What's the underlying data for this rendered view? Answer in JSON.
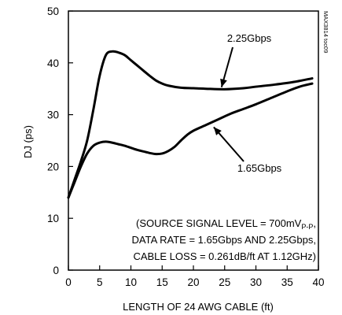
{
  "chart_data": {
    "type": "line",
    "title": "",
    "figure_id": "MAX3814 toc09",
    "xlabel": "LENGTH OF 24 AWG CABLE (ft)",
    "ylabel": "DJ (ps)",
    "xlim": [
      0,
      40
    ],
    "ylim": [
      0,
      50
    ],
    "x_ticks": [
      0,
      5,
      10,
      15,
      20,
      25,
      30,
      35,
      40
    ],
    "y_ticks": [
      0,
      10,
      20,
      30,
      40,
      50
    ],
    "grid": false,
    "series": [
      {
        "name": "2.25Gbps",
        "x": [
          0,
          1,
          2,
          3,
          4,
          5,
          6,
          7,
          8,
          9,
          10,
          11,
          12,
          13,
          14,
          15,
          16,
          18,
          20,
          22,
          25,
          28,
          30,
          33,
          36,
          39
        ],
        "y": [
          14,
          17.5,
          21,
          25,
          31,
          37.5,
          41.5,
          42.2,
          42,
          41.5,
          40.5,
          39.5,
          38.5,
          37.5,
          36.6,
          36,
          35.6,
          35.2,
          35.1,
          35,
          34.9,
          35.1,
          35.4,
          35.8,
          36.3,
          37
        ]
      },
      {
        "name": "1.65Gbps",
        "x": [
          0,
          1,
          2,
          3,
          4,
          5,
          6,
          7,
          8,
          9,
          10,
          11,
          12,
          13,
          14,
          15,
          16,
          17,
          18,
          19,
          20,
          22,
          24,
          26,
          28,
          30,
          32,
          35,
          37,
          39
        ],
        "y": [
          14,
          17,
          20,
          22.5,
          24,
          24.6,
          24.8,
          24.6,
          24.3,
          24,
          23.6,
          23.2,
          22.9,
          22.6,
          22.4,
          22.5,
          23,
          23.8,
          25,
          26.1,
          26.9,
          28,
          29.1,
          30.2,
          31.1,
          32,
          33,
          34.5,
          35.4,
          36
        ]
      }
    ],
    "annotations": [
      {
        "id": "label_225",
        "text": "2.25Gbps",
        "arrow_to": {
          "x": 24.5,
          "y": 35.0
        }
      },
      {
        "id": "label_165",
        "text": "1.65Gbps",
        "arrow_to": {
          "x": 23.0,
          "y": 27.9
        }
      },
      {
        "id": "note1",
        "text": "(SOURCE SIGNAL LEVEL = 700mV",
        "sub": "P-P",
        "tail": ","
      },
      {
        "id": "note2",
        "text": "DATA RATE = 1.65Gbps AND 2.25Gbps,"
      },
      {
        "id": "note3",
        "text": "CABLE LOSS = 0.261dB/ft AT 1.12GHz)"
      }
    ]
  }
}
